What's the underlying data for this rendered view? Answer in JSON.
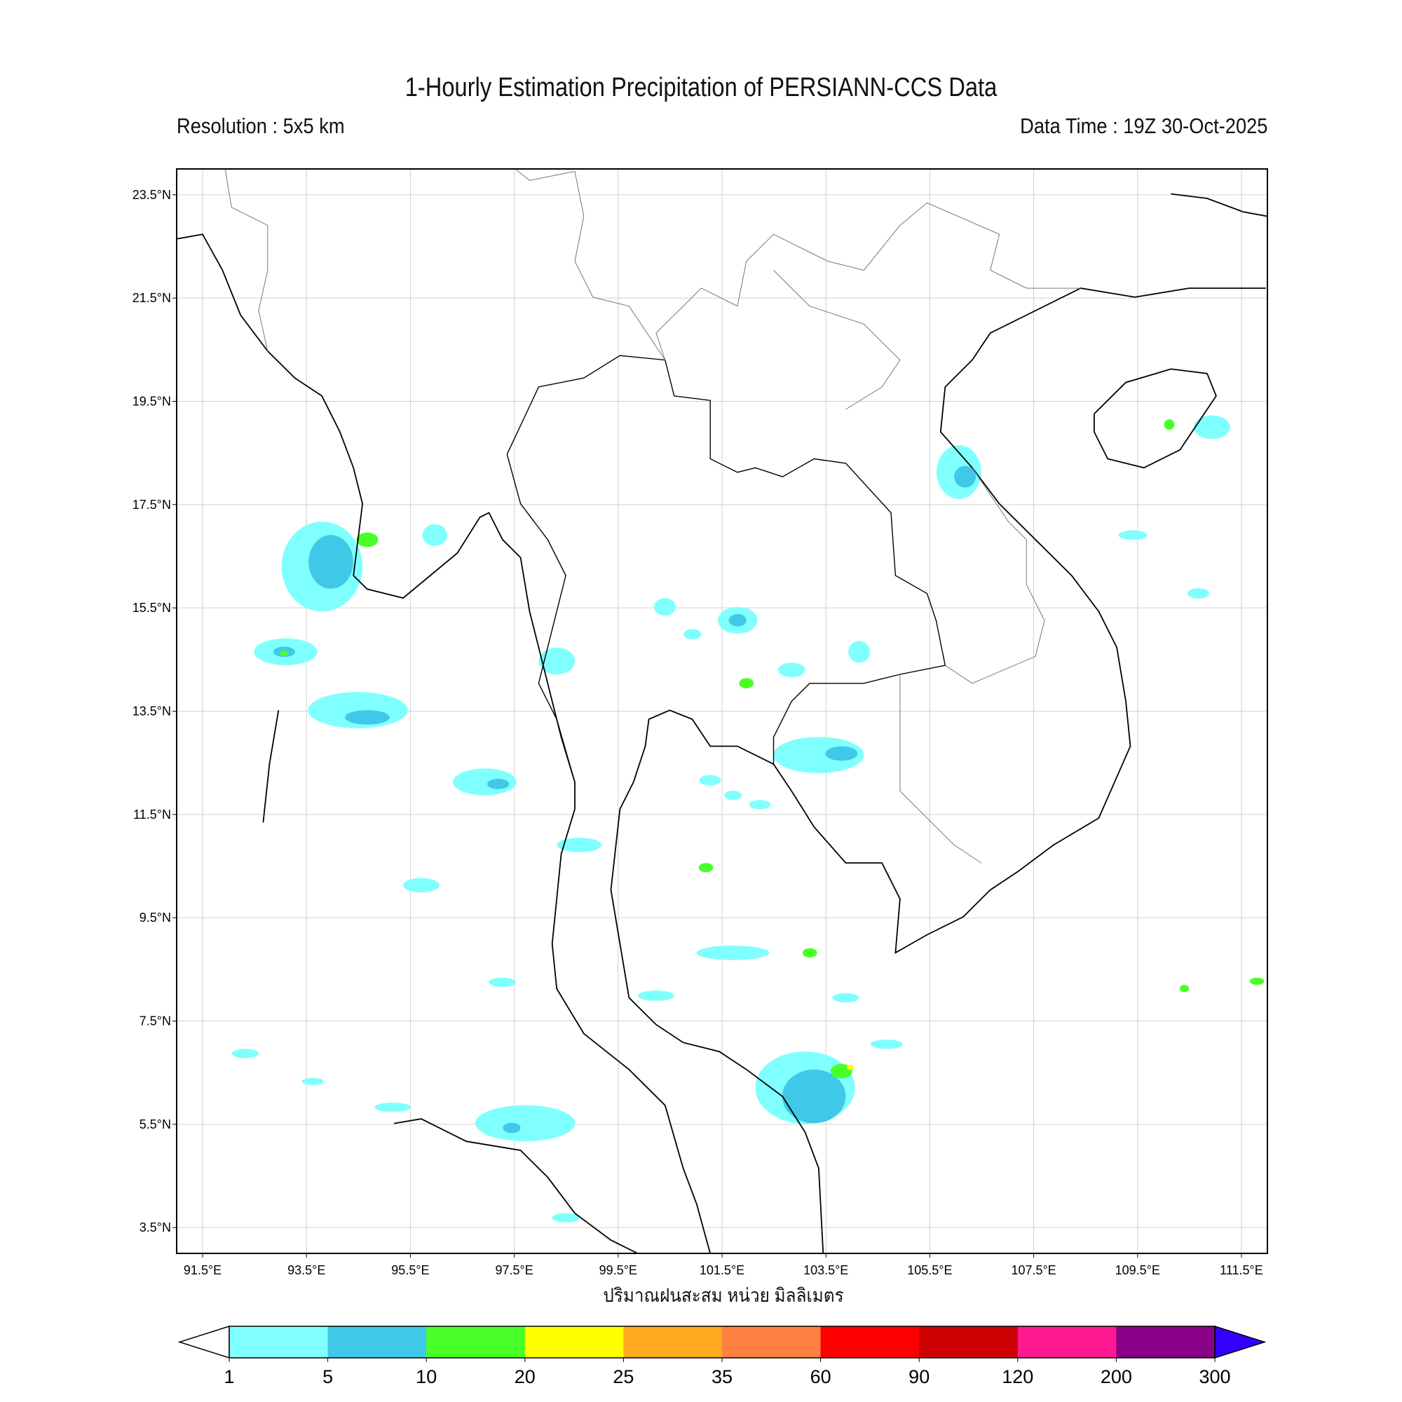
{
  "header": {
    "title": "1-Hourly Estimation Precipitation of PERSIANN-CCS Data",
    "resolution": "Resolution : 5x5 km",
    "data_time": "Data Time : 19Z 30-Oct-2025"
  },
  "map": {
    "extent": {
      "lon": [
        91,
        112
      ],
      "lat": [
        3,
        24
      ]
    },
    "lon_ticks": [
      91.5,
      93.5,
      95.5,
      97.5,
      99.5,
      101.5,
      103.5,
      105.5,
      107.5,
      109.5,
      111.5
    ],
    "lon_tick_labels": [
      "91.5°E",
      "93.5°E",
      "95.5°E",
      "97.5°E",
      "99.5°E",
      "101.5°E",
      "103.5°E",
      "105.5°E",
      "107.5°E",
      "109.5°E",
      "111.5°E"
    ],
    "lat_ticks": [
      23.5,
      21.5,
      19.5,
      17.5,
      15.5,
      13.5,
      11.5,
      9.5,
      7.5,
      5.5,
      3.5
    ],
    "lat_tick_labels": [
      "23.5°N",
      "21.5°N",
      "19.5°N",
      "17.5°N",
      "15.5°N",
      "13.5°N",
      "11.5°N",
      "9.5°N",
      "7.5°N",
      "5.5°N",
      "3.5°N"
    ],
    "grid": true,
    "xlabel": "ปริมาณฝนสะสม หน่วย มิลลิเมตร",
    "precip_cells": [
      {
        "lon": 93.8,
        "lat": 16.3,
        "r_lon": 0.78,
        "r_lat": 0.87,
        "level": 1
      },
      {
        "lon": 93.97,
        "lat": 16.39,
        "r_lon": 0.43,
        "r_lat": 0.52,
        "level": 5
      },
      {
        "lon": 94.67,
        "lat": 16.82,
        "r_lon": 0.21,
        "r_lat": 0.14,
        "level": 10
      },
      {
        "lon": 93.1,
        "lat": 14.65,
        "r_lon": 0.61,
        "r_lat": 0.26,
        "level": 1
      },
      {
        "lon": 93.07,
        "lat": 14.65,
        "r_lon": 0.21,
        "r_lat": 0.1,
        "level": 5
      },
      {
        "lon": 93.07,
        "lat": 14.62,
        "r_lon": 0.09,
        "r_lat": 0.05,
        "level": 10
      },
      {
        "lon": 94.49,
        "lat": 13.52,
        "r_lon": 0.96,
        "r_lat": 0.35,
        "level": 1
      },
      {
        "lon": 94.67,
        "lat": 13.38,
        "r_lon": 0.43,
        "r_lat": 0.14,
        "level": 5
      },
      {
        "lon": 96.93,
        "lat": 12.13,
        "r_lon": 0.61,
        "r_lat": 0.26,
        "level": 1
      },
      {
        "lon": 97.19,
        "lat": 12.09,
        "r_lon": 0.21,
        "r_lat": 0.1,
        "level": 5
      },
      {
        "lon": 98.32,
        "lat": 14.47,
        "r_lon": 0.35,
        "r_lat": 0.26,
        "level": 1
      },
      {
        "lon": 98.75,
        "lat": 10.91,
        "r_lon": 0.43,
        "r_lat": 0.14,
        "level": 1
      },
      {
        "lon": 95.71,
        "lat": 10.13,
        "r_lon": 0.35,
        "r_lat": 0.14,
        "level": 1
      },
      {
        "lon": 101.8,
        "lat": 15.26,
        "r_lon": 0.38,
        "r_lat": 0.26,
        "level": 1
      },
      {
        "lon": 101.8,
        "lat": 15.26,
        "r_lon": 0.17,
        "r_lat": 0.12,
        "level": 5
      },
      {
        "lon": 103.36,
        "lat": 12.65,
        "r_lon": 0.87,
        "r_lat": 0.35,
        "level": 1
      },
      {
        "lon": 103.8,
        "lat": 12.68,
        "r_lon": 0.31,
        "r_lat": 0.14,
        "level": 5
      },
      {
        "lon": 101.27,
        "lat": 12.16,
        "r_lon": 0.21,
        "r_lat": 0.1,
        "level": 1
      },
      {
        "lon": 101.71,
        "lat": 11.87,
        "r_lon": 0.17,
        "r_lat": 0.09,
        "level": 1
      },
      {
        "lon": 102.23,
        "lat": 11.69,
        "r_lon": 0.21,
        "r_lat": 0.09,
        "level": 1
      },
      {
        "lon": 101.19,
        "lat": 10.47,
        "r_lon": 0.14,
        "r_lat": 0.09,
        "level": 10
      },
      {
        "lon": 101.71,
        "lat": 8.82,
        "r_lon": 0.7,
        "r_lat": 0.14,
        "level": 1
      },
      {
        "lon": 103.19,
        "lat": 8.82,
        "r_lon": 0.14,
        "r_lat": 0.09,
        "level": 10
      },
      {
        "lon": 103.1,
        "lat": 6.21,
        "r_lon": 0.96,
        "r_lat": 0.7,
        "level": 1
      },
      {
        "lon": 103.27,
        "lat": 6.04,
        "r_lon": 0.61,
        "r_lat": 0.52,
        "level": 5
      },
      {
        "lon": 103.8,
        "lat": 6.53,
        "r_lon": 0.21,
        "r_lat": 0.14,
        "level": 10
      },
      {
        "lon": 103.97,
        "lat": 6.6,
        "r_lon": 0.07,
        "r_lat": 0.05,
        "level": 20
      },
      {
        "lon": 97.71,
        "lat": 5.52,
        "r_lon": 0.96,
        "r_lat": 0.35,
        "level": 1
      },
      {
        "lon": 97.45,
        "lat": 5.43,
        "r_lon": 0.17,
        "r_lat": 0.1,
        "level": 5
      },
      {
        "lon": 106.06,
        "lat": 18.13,
        "r_lon": 0.43,
        "r_lat": 0.52,
        "level": 1
      },
      {
        "lon": 106.18,
        "lat": 18.04,
        "r_lon": 0.21,
        "r_lat": 0.21,
        "level": 5
      },
      {
        "lon": 110.93,
        "lat": 19.0,
        "r_lon": 0.35,
        "r_lat": 0.23,
        "level": 1
      },
      {
        "lon": 110.11,
        "lat": 19.05,
        "r_lon": 0.1,
        "r_lat": 0.1,
        "level": 10
      },
      {
        "lon": 109.41,
        "lat": 16.91,
        "r_lon": 0.28,
        "r_lat": 0.09,
        "level": 1
      },
      {
        "lon": 104.67,
        "lat": 7.05,
        "r_lon": 0.31,
        "r_lat": 0.09,
        "level": 1
      },
      {
        "lon": 100.23,
        "lat": 7.99,
        "r_lon": 0.35,
        "r_lat": 0.1,
        "level": 1
      },
      {
        "lon": 98.49,
        "lat": 3.69,
        "r_lon": 0.26,
        "r_lat": 0.09,
        "level": 1
      },
      {
        "lon": 110.67,
        "lat": 15.78,
        "r_lon": 0.21,
        "r_lat": 0.1,
        "level": 1
      },
      {
        "lon": 111.8,
        "lat": 8.27,
        "r_lon": 0.14,
        "r_lat": 0.07,
        "level": 10
      },
      {
        "lon": 95.97,
        "lat": 16.91,
        "r_lon": 0.24,
        "r_lat": 0.21,
        "level": 1
      },
      {
        "lon": 100.4,
        "lat": 15.52,
        "r_lon": 0.21,
        "r_lat": 0.17,
        "level": 1
      },
      {
        "lon": 104.14,
        "lat": 14.65,
        "r_lon": 0.21,
        "r_lat": 0.21,
        "level": 1
      },
      {
        "lon": 102.84,
        "lat": 14.3,
        "r_lon": 0.26,
        "r_lat": 0.14,
        "level": 1
      },
      {
        "lon": 100.93,
        "lat": 14.99,
        "r_lon": 0.17,
        "r_lat": 0.1,
        "level": 1
      },
      {
        "lon": 101.97,
        "lat": 14.04,
        "r_lon": 0.14,
        "r_lat": 0.1,
        "level": 10
      },
      {
        "lon": 93.62,
        "lat": 6.33,
        "r_lon": 0.21,
        "r_lat": 0.07,
        "level": 1
      },
      {
        "lon": 92.32,
        "lat": 6.87,
        "r_lon": 0.26,
        "r_lat": 0.09,
        "level": 1
      },
      {
        "lon": 95.16,
        "lat": 5.83,
        "r_lon": 0.35,
        "r_lat": 0.09,
        "level": 1
      },
      {
        "lon": 97.27,
        "lat": 8.25,
        "r_lon": 0.26,
        "r_lat": 0.09,
        "level": 1
      },
      {
        "lon": 103.88,
        "lat": 7.95,
        "r_lon": 0.26,
        "r_lat": 0.09,
        "level": 1
      },
      {
        "lon": 110.4,
        "lat": 8.13,
        "r_lon": 0.09,
        "r_lat": 0.07,
        "level": 10
      }
    ]
  },
  "colorbar": {
    "ticks": [
      "1",
      "5",
      "10",
      "20",
      "25",
      "35",
      "60",
      "90",
      "120",
      "200",
      "300"
    ],
    "levels": [
      1,
      5,
      10,
      20,
      25,
      35,
      60,
      90,
      120,
      200,
      300
    ],
    "colors": [
      "#80ffff",
      "#40c8e8",
      "#48ff28",
      "#ffff00",
      "#ffaa20",
      "#ff8040",
      "#ff0000",
      "#cc0000",
      "#ff1890",
      "#880088"
    ],
    "under_color": "#ffffff",
    "over_color": "#3300ff"
  }
}
